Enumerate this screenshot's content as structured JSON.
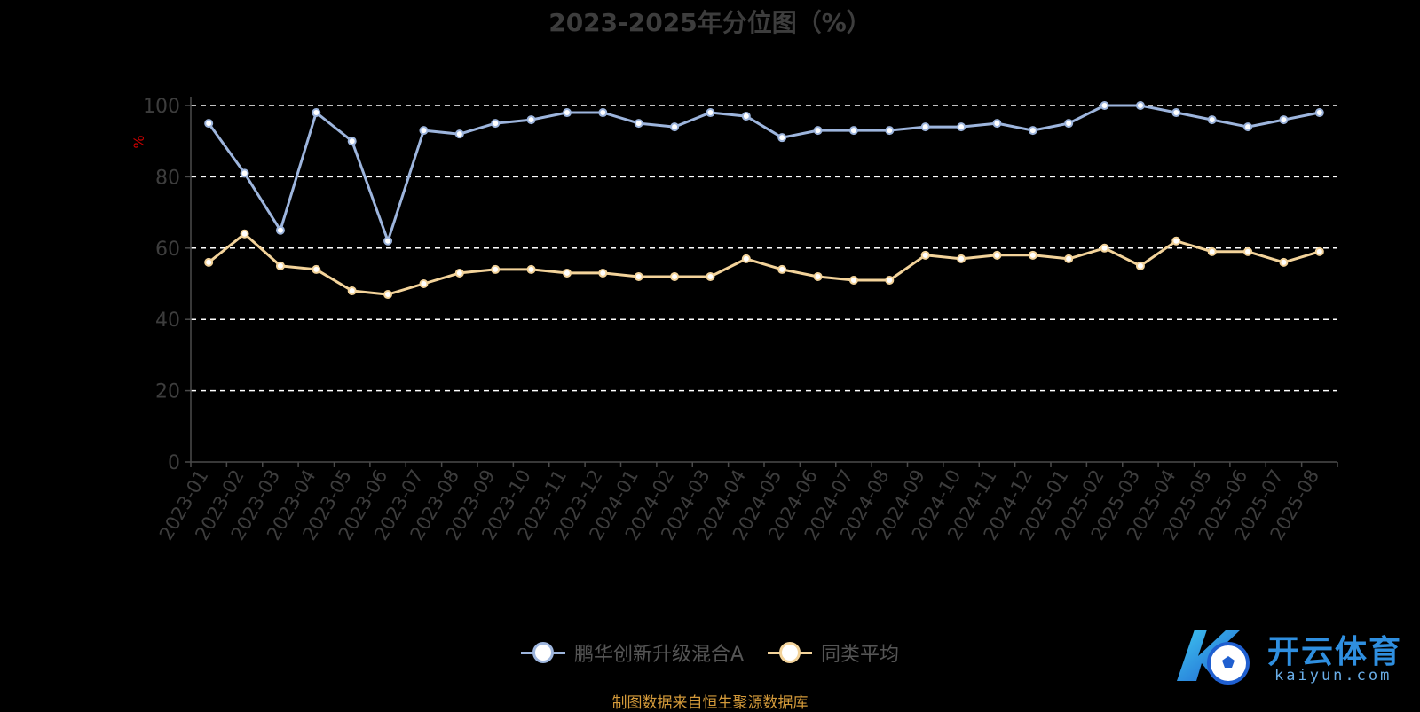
{
  "chart_data": {
    "type": "line",
    "title": "2023-2025年分位图（%）",
    "ylabel": "%",
    "ylim": [
      0,
      100
    ],
    "yticks": [
      0,
      20,
      40,
      60,
      80,
      100
    ],
    "grid": true,
    "legend_position": "bottom-center",
    "categories": [
      "2023-01",
      "2023-02",
      "2023-03",
      "2023-04",
      "2023-05",
      "2023-06",
      "2023-07",
      "2023-08",
      "2023-09",
      "2023-10",
      "2023-11",
      "2023-12",
      "2024-01",
      "2024-02",
      "2024-03",
      "2024-04",
      "2024-05",
      "2024-06",
      "2024-07",
      "2024-08",
      "2024-09",
      "2024-10",
      "2024-11",
      "2024-12",
      "2025-01",
      "2025-02",
      "2025-03",
      "2025-04",
      "2025-05",
      "2025-06",
      "2025-07",
      "2025-08"
    ],
    "series": [
      {
        "name": "鹏华创新升级混合A",
        "color": "#9db5dd",
        "values": [
          95,
          81,
          65,
          98,
          90,
          62,
          93,
          92,
          95,
          96,
          98,
          98,
          95,
          94,
          98,
          97,
          91,
          93,
          93,
          93,
          94,
          94,
          95,
          93,
          95,
          100,
          100,
          98,
          96,
          94,
          96,
          98
        ]
      },
      {
        "name": "同类平均",
        "color": "#f3d39a",
        "values": [
          56,
          64,
          55,
          54,
          48,
          47,
          50,
          53,
          54,
          54,
          53,
          53,
          52,
          52,
          52,
          57,
          54,
          52,
          51,
          51,
          58,
          57,
          58,
          58,
          57,
          60,
          55,
          62,
          59,
          59,
          56,
          59
        ]
      }
    ]
  },
  "source": "制图数据来自恒生聚源数据库",
  "watermark": {
    "name": "开云体育",
    "url": "kaiyun.com"
  },
  "colors": {
    "background": "#000000",
    "grid": "#ffffff",
    "axis_text": "#3d3d3d",
    "ylabel": "#cc0000",
    "source": "#d49a3a"
  }
}
